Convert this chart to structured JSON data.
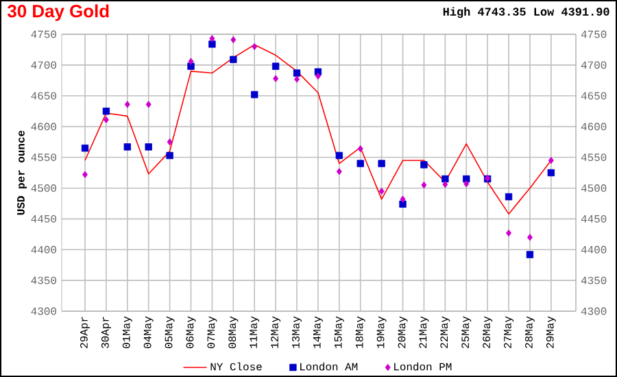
{
  "chart_data": {
    "type": "line",
    "title": "30 Day Gold",
    "ylabel": "USD per ounce",
    "annotations": [
      "High 4743.35 Low 4391.90"
    ],
    "categories": [
      "29Apr",
      "30Apr",
      "01May",
      "04May",
      "05May",
      "06May",
      "07May",
      "08May",
      "11May",
      "12May",
      "13May",
      "14May",
      "15May",
      "18May",
      "19May",
      "20May",
      "21May",
      "22May",
      "25May",
      "26May",
      "27May",
      "28May",
      "29May"
    ],
    "series": [
      {
        "name": "NY Close",
        "color": "#ff0000",
        "marker": "none",
        "values": [
          4545,
          4622,
          4617,
          4523,
          4560,
          4690,
          4687,
          4712,
          4733,
          4716,
          4690,
          4655,
          4540,
          4566,
          4482,
          4545,
          4545,
          4510,
          4572,
          4510,
          4458,
          4500,
          4545
        ]
      },
      {
        "name": "London AM",
        "type": "scatter",
        "color": "#0000cc",
        "marker": "square",
        "values": [
          4565,
          4625,
          4567,
          4567,
          4553,
          4698,
          4734,
          4709,
          4652,
          4698,
          4687,
          4689,
          4553,
          4540,
          4540,
          4474,
          4538,
          4515,
          4515,
          4515,
          4486,
          4392,
          4525
        ]
      },
      {
        "name": "London PM",
        "type": "scatter",
        "color": "#cc00cc",
        "marker": "diamond",
        "values": [
          4522,
          4611,
          4636,
          4636,
          4575,
          4706,
          4743,
          4741,
          4730,
          4678,
          4677,
          4682,
          4527,
          4564,
          4495,
          4482,
          4505,
          4506,
          4507,
          4516,
          4427,
          4420,
          4545
        ]
      }
    ],
    "ylim": [
      4300,
      4750
    ],
    "yticks": [
      4300,
      4350,
      4400,
      4450,
      4500,
      4550,
      4600,
      4650,
      4700,
      4750
    ],
    "y2lim": [
      4300,
      4750
    ],
    "y2ticks": [
      4300,
      4350,
      4400,
      4450,
      4500,
      4550,
      4600,
      4650,
      4700,
      4750
    ],
    "grid": true,
    "legend": "bottom"
  }
}
